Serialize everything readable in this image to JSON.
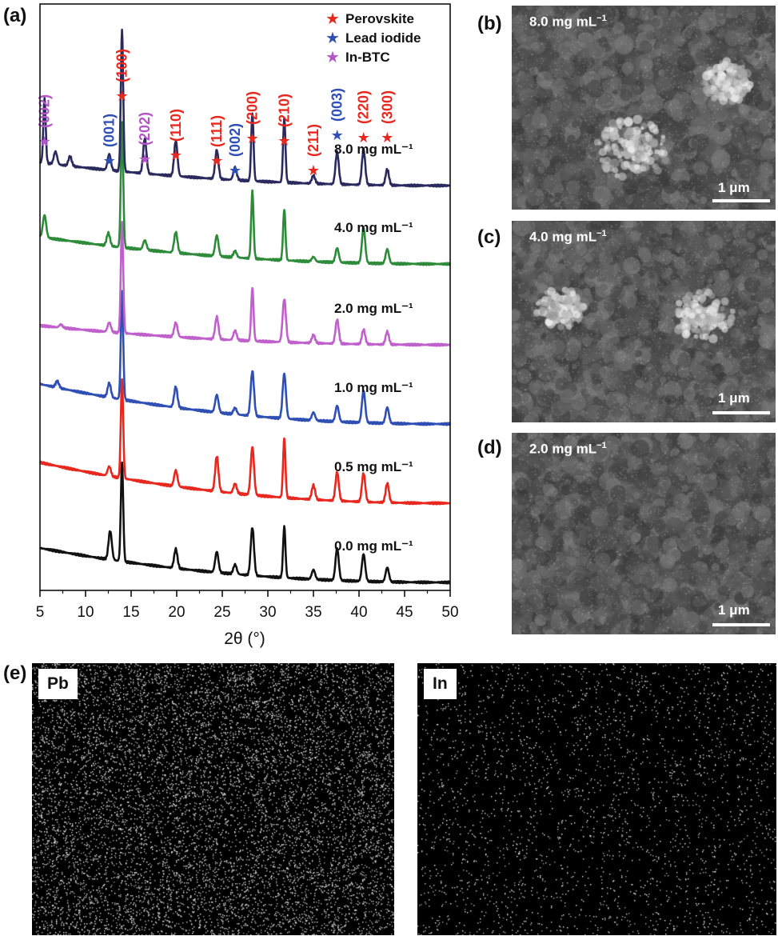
{
  "panels": {
    "a": "(a)",
    "b": "(b)",
    "c": "(c)",
    "d": "(d)",
    "e": "(e)"
  },
  "legend": [
    {
      "label": "Perovskite",
      "color": "#e8281e"
    },
    {
      "label": "Lead iodide",
      "color": "#2f4fb5"
    },
    {
      "label": "In-BTC",
      "color": "#b455c8"
    }
  ],
  "chart_data": {
    "type": "line",
    "xlabel": "2θ (°)",
    "ylabel": "",
    "xlim": [
      5,
      50
    ],
    "xticks": [
      5,
      10,
      15,
      20,
      25,
      30,
      35,
      40,
      45,
      50
    ],
    "y_axis_ticks": false,
    "series": [
      {
        "name": "0.0 mg mL⁻¹",
        "color": "#111111",
        "peaks": [
          [
            12.7,
            0.18
          ],
          [
            14.0,
            0.62
          ],
          [
            19.9,
            0.12
          ],
          [
            24.4,
            0.13
          ],
          [
            26.4,
            0.06
          ],
          [
            28.3,
            0.3
          ],
          [
            31.8,
            0.32
          ],
          [
            35.0,
            0.06
          ],
          [
            37.6,
            0.2
          ],
          [
            40.5,
            0.17
          ],
          [
            43.1,
            0.09
          ]
        ]
      },
      {
        "name": "0.5 mg mL⁻¹",
        "color": "#e8281e",
        "peaks": [
          [
            12.6,
            0.06
          ],
          [
            14.0,
            0.62
          ],
          [
            19.9,
            0.1
          ],
          [
            24.4,
            0.22
          ],
          [
            26.4,
            0.06
          ],
          [
            28.3,
            0.3
          ],
          [
            31.8,
            0.37
          ],
          [
            35.0,
            0.09
          ],
          [
            37.6,
            0.18
          ],
          [
            40.5,
            0.18
          ],
          [
            43.1,
            0.12
          ]
        ]
      },
      {
        "name": "1.0 mg mL⁻¹",
        "color": "#2f4fb5",
        "peaks": [
          [
            6.9,
            0.04
          ],
          [
            12.6,
            0.09
          ],
          [
            14.0,
            0.68
          ],
          [
            19.9,
            0.13
          ],
          [
            24.4,
            0.11
          ],
          [
            26.4,
            0.04
          ],
          [
            28.3,
            0.28
          ],
          [
            31.8,
            0.28
          ],
          [
            35.0,
            0.05
          ],
          [
            37.6,
            0.1
          ],
          [
            40.5,
            0.2
          ],
          [
            43.1,
            0.1
          ]
        ]
      },
      {
        "name": "2.0 mg mL⁻¹",
        "color": "#c060cc",
        "peaks": [
          [
            7.3,
            0.02
          ],
          [
            12.6,
            0.06
          ],
          [
            14.0,
            0.7
          ],
          [
            19.9,
            0.09
          ],
          [
            24.4,
            0.14
          ],
          [
            26.4,
            0.06
          ],
          [
            28.3,
            0.33
          ],
          [
            31.8,
            0.27
          ],
          [
            35.0,
            0.05
          ],
          [
            37.6,
            0.15
          ],
          [
            40.5,
            0.09
          ],
          [
            43.1,
            0.08
          ]
        ]
      },
      {
        "name": "4.0 mg mL⁻¹",
        "color": "#2e8b3a",
        "peaks": [
          [
            5.5,
            0.14
          ],
          [
            12.5,
            0.08
          ],
          [
            14.0,
            0.78
          ],
          [
            16.5,
            0.06
          ],
          [
            19.9,
            0.13
          ],
          [
            24.4,
            0.13
          ],
          [
            26.4,
            0.04
          ],
          [
            28.3,
            0.42
          ],
          [
            31.8,
            0.32
          ],
          [
            35.0,
            0.03
          ],
          [
            37.6,
            0.09
          ],
          [
            40.5,
            0.22
          ],
          [
            43.1,
            0.09
          ]
        ]
      },
      {
        "name": "8.0 mg mL⁻¹",
        "color": "#2b2a5e",
        "peaks": [
          [
            5.5,
            0.4
          ],
          [
            6.7,
            0.08
          ],
          [
            8.3,
            0.06
          ],
          [
            12.6,
            0.1
          ],
          [
            14.0,
            0.88
          ],
          [
            16.5,
            0.22
          ],
          [
            19.9,
            0.22
          ],
          [
            24.4,
            0.18
          ],
          [
            26.4,
            0.08
          ],
          [
            28.3,
            0.42
          ],
          [
            31.8,
            0.4
          ],
          [
            35.0,
            0.05
          ],
          [
            37.6,
            0.2
          ],
          [
            40.5,
            0.22
          ],
          [
            43.1,
            0.1
          ]
        ]
      }
    ],
    "peak_annotations": [
      {
        "label": "(002)",
        "x": 5.5,
        "phase": "In-BTC"
      },
      {
        "label": "(001)",
        "x": 12.6,
        "phase": "Lead iodide"
      },
      {
        "label": "(100)",
        "x": 14.0,
        "phase": "Perovskite"
      },
      {
        "label": "(202)",
        "x": 16.5,
        "phase": "In-BTC"
      },
      {
        "label": "(110)",
        "x": 19.9,
        "phase": "Perovskite"
      },
      {
        "label": "(111)",
        "x": 24.4,
        "phase": "Perovskite"
      },
      {
        "label": "(002)",
        "x": 26.4,
        "phase": "Lead iodide"
      },
      {
        "label": "(200)",
        "x": 28.3,
        "phase": "Perovskite"
      },
      {
        "label": "(210)",
        "x": 31.8,
        "phase": "Perovskite"
      },
      {
        "label": "(211)",
        "x": 35.0,
        "phase": "Perovskite"
      },
      {
        "label": "(003)",
        "x": 37.6,
        "phase": "Lead iodide"
      },
      {
        "label": "(220)",
        "x": 40.5,
        "phase": "Perovskite"
      },
      {
        "label": "(300)",
        "x": 43.1,
        "phase": "Perovskite"
      }
    ]
  },
  "sem_images": [
    {
      "label": "8.0 mg mL",
      "sup": "−1",
      "scale": "1 μm"
    },
    {
      "label": "4.0 mg mL",
      "sup": "−1",
      "scale": "1 μm"
    },
    {
      "label": "2.0 mg mL",
      "sup": "−1",
      "scale": "1 μm"
    }
  ],
  "eds_maps": [
    {
      "element": "Pb"
    },
    {
      "element": "In"
    }
  ]
}
